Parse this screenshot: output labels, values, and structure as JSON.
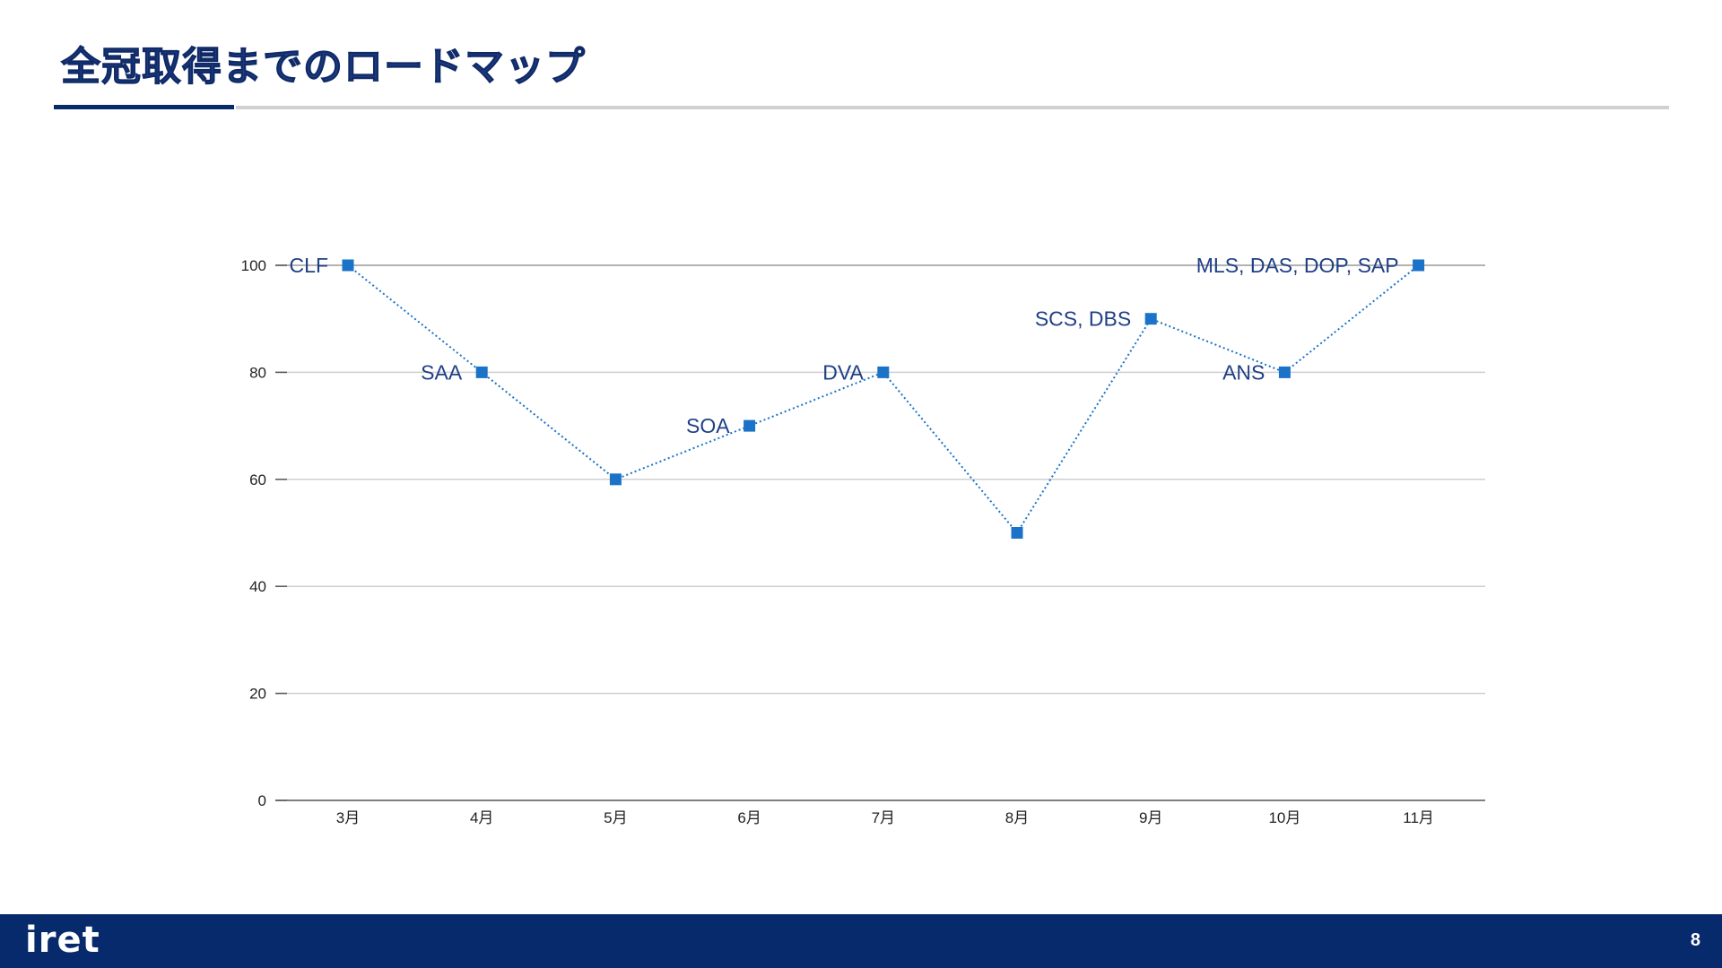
{
  "slide": {
    "title": "全冠取得までのロードマップ",
    "logo_text": "iret",
    "page_number": "8"
  },
  "colors": {
    "title": "#1f3f86",
    "accent_rule": "#072a6c",
    "marker": "#1a73c8",
    "label": "#1f3f86",
    "footer": "#062a6c"
  },
  "chart_data": {
    "type": "line",
    "title": "",
    "xlabel": "",
    "ylabel": "",
    "ylim": [
      0,
      100
    ],
    "yticks": [
      0,
      20,
      40,
      60,
      80,
      100
    ],
    "grid": true,
    "line_style": "dotted",
    "marker": "square",
    "categories": [
      "3月",
      "4月",
      "5月",
      "6月",
      "7月",
      "8月",
      "9月",
      "10月",
      "11月"
    ],
    "series": [
      {
        "values": [
          100,
          80,
          60,
          70,
          80,
          50,
          90,
          80,
          100
        ],
        "point_labels": [
          "CLF",
          "SAA",
          "",
          "SOA",
          "DVA",
          "",
          "SCS, DBS",
          "ANS",
          "MLS, DAS, DOP, SAP"
        ]
      }
    ]
  }
}
